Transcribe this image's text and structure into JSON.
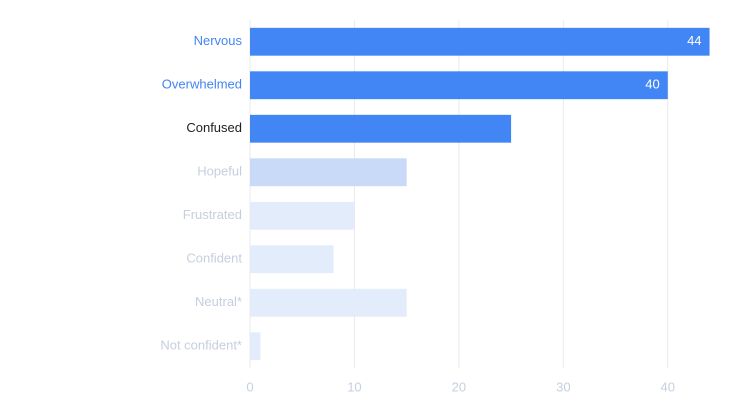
{
  "chart_data": {
    "type": "hbar",
    "categories": [
      "Nervous",
      "Overwhelmed",
      "Confused",
      "Hopeful",
      "Frustrated",
      "Confident",
      "Neutral*",
      "Not confident*"
    ],
    "values": [
      44,
      40,
      25,
      15,
      10,
      8,
      15,
      1
    ],
    "value_labels": [
      "44",
      "40",
      null,
      null,
      null,
      null,
      null,
      null
    ],
    "colors": [
      "#4285f4",
      "#4285f4",
      "#4285f4",
      "#c9d9f8",
      "#e3ecfb",
      "#e3ecfb",
      "#e3ecfb",
      "#e3ecfb"
    ],
    "label_colors": [
      "#4285f4",
      "#4285f4",
      "#202124",
      "#c5cfe0",
      "#c5cfe0",
      "#c5cfe0",
      "#c5cfe0",
      "#c5cfe0"
    ],
    "xlim": [
      0,
      45
    ],
    "xticks": [
      0,
      10,
      20,
      30,
      40
    ],
    "grid": true
  }
}
